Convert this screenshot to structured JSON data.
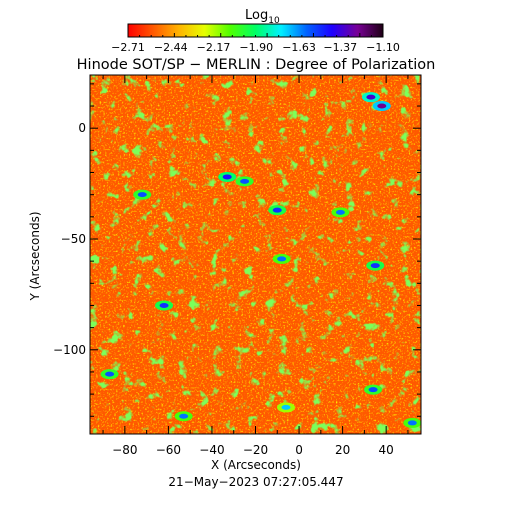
{
  "chart_data": {
    "type": "heatmap",
    "title": "Hinode SOT/SP − MERLIN : Degree of Polarization",
    "xlabel": "X (Arcseconds)",
    "ylabel": "Y (Arcseconds)",
    "xlim": [
      -96,
      56
    ],
    "ylim": [
      -138,
      24
    ],
    "x_ticks": [
      -80,
      -60,
      -40,
      -20,
      0,
      20,
      40
    ],
    "x_tick_labels": [
      "−80",
      "−60",
      "−40",
      "−20",
      "0",
      "20",
      "40"
    ],
    "y_ticks": [
      0,
      -50,
      -100
    ],
    "y_tick_labels": [
      "0",
      "−50",
      "−100"
    ],
    "footer": "21−May−2023 07:27:05.447",
    "colorbar": {
      "title": "Log",
      "title_subscript": "10",
      "range": [
        -2.71,
        -1.1
      ],
      "tick_values": [
        -2.71,
        -2.44,
        -2.17,
        -1.9,
        -1.63,
        -1.37,
        -1.1
      ],
      "tick_labels": [
        "−2.71",
        "−2.44",
        "−2.17",
        "−1.90",
        "−1.63",
        "−1.37",
        "−1.10"
      ],
      "stops": [
        "#ff0000",
        "#ff5a00",
        "#ffb400",
        "#e6ff00",
        "#50ff00",
        "#00ff64",
        "#00f0ff",
        "#0064ff",
        "#1e00ff",
        "#780096",
        "#1e0014"
      ]
    },
    "dominant_level": -2.55,
    "features": [
      {
        "x": 38,
        "y": 10,
        "value": -1.25
      },
      {
        "x": 33,
        "y": 14,
        "value": -1.35
      },
      {
        "x": -72,
        "y": -30,
        "value": -1.55
      },
      {
        "x": -33,
        "y": -22,
        "value": -1.45
      },
      {
        "x": -25,
        "y": -24,
        "value": -1.55
      },
      {
        "x": -10,
        "y": -37,
        "value": -1.5
      },
      {
        "x": 19,
        "y": -38,
        "value": -1.6
      },
      {
        "x": -8,
        "y": -59,
        "value": -1.6
      },
      {
        "x": 35,
        "y": -62,
        "value": -1.5
      },
      {
        "x": -62,
        "y": -80,
        "value": -1.5
      },
      {
        "x": -87,
        "y": -111,
        "value": -1.55
      },
      {
        "x": -53,
        "y": -130,
        "value": -1.6
      },
      {
        "x": 34,
        "y": -118,
        "value": -1.55
      },
      {
        "x": -6,
        "y": -126,
        "value": -1.7
      },
      {
        "x": 52,
        "y": -133,
        "value": -1.6
      }
    ]
  }
}
